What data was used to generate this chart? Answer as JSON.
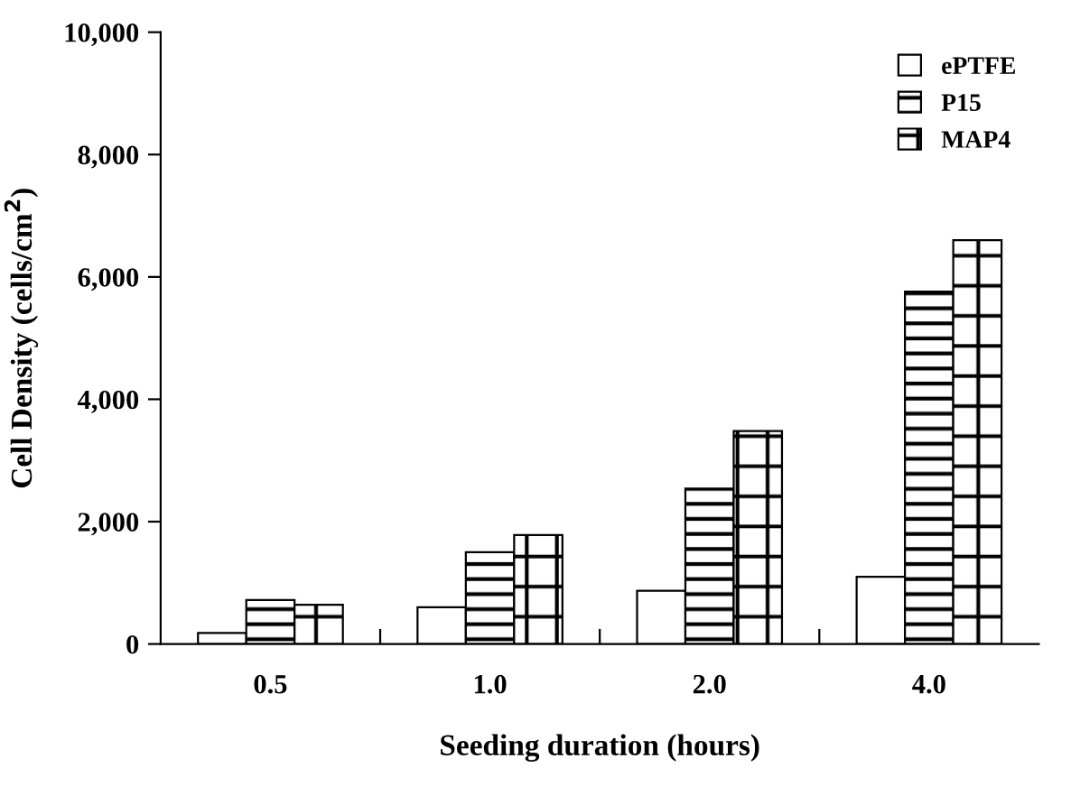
{
  "chart_data": {
    "type": "bar",
    "xlabel": "Seeding duration (hours)",
    "ylabel": "Cell Density (cells/cm$^{2}$)",
    "categories": [
      "0.5",
      "1.0",
      "2.0",
      "4.0"
    ],
    "series": [
      {
        "name": "ePTFE",
        "color": "#ffffff",
        "values": [
          180,
          600,
          870,
          1100
        ]
      },
      {
        "name": "P15",
        "color": "#000000",
        "values": [
          720,
          1500,
          2540,
          5760
        ]
      },
      {
        "name": "MAP4",
        "color": "#000000",
        "values": [
          640,
          1780,
          3480,
          6600
        ]
      }
    ],
    "ylim": [
      0,
      10000
    ],
    "yticks": [
      {
        "value": 0,
        "label": "0"
      },
      {
        "value": 2000,
        "label": "2,000"
      },
      {
        "value": 4000,
        "label": "4,000"
      },
      {
        "value": 6000,
        "label": "6,000"
      },
      {
        "value": 8000,
        "label": "8,000"
      },
      {
        "value": 10000,
        "label": "10,000"
      }
    ],
    "grid": false,
    "legend": "top right"
  }
}
